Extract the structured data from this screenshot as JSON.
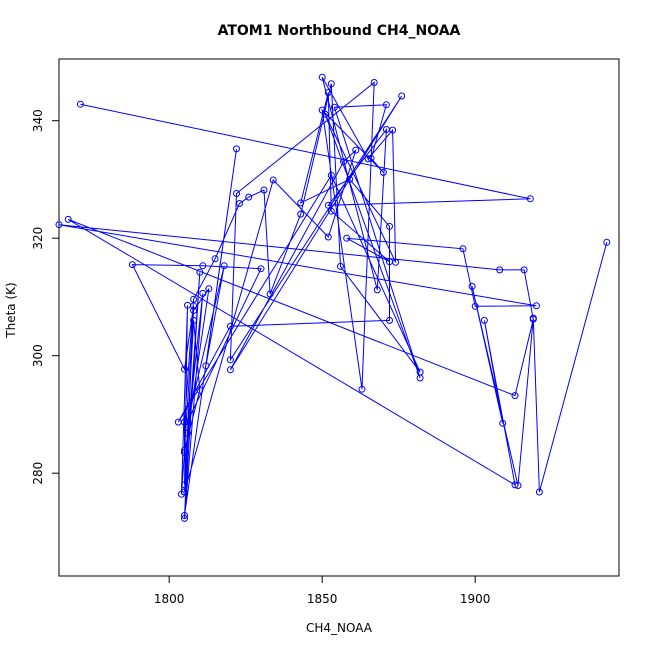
{
  "chart_data": {
    "type": "line",
    "title": "ATOM1 Northbound CH4_NOAA",
    "xlabel": "CH4_NOAA",
    "ylabel": "Theta (K)",
    "xlim": [
      1764,
      1947
    ],
    "ylim": [
      262.5,
      350.5
    ],
    "x_ticks": [
      1800,
      1850,
      1900
    ],
    "y_ticks": [
      280,
      300,
      320,
      340
    ],
    "grid": false,
    "legend": "none",
    "marker": "open-circle",
    "colors": {
      "series": "#0000ff",
      "axes": "#000000",
      "background": "#ffffff"
    },
    "series": [
      {
        "points": [
          [
            1771,
            342.8
          ],
          [
            1918,
            326.7
          ],
          [
            1852,
            325.6
          ],
          [
            1871,
            338.5
          ],
          [
            1868,
            311.2
          ],
          [
            1850,
            347.4
          ],
          [
            1865,
            333.5
          ],
          [
            1873,
            338.4
          ],
          [
            1874,
            315.9
          ],
          [
            1851,
            341.1
          ],
          [
            1882,
            296.2
          ],
          [
            1854,
            342.3
          ],
          [
            1871,
            342.7
          ],
          [
            1866,
            333.6
          ],
          [
            1870,
            331.2
          ],
          [
            1850,
            341.8
          ],
          [
            1863,
            294.3
          ],
          [
            1867,
            346.5
          ],
          [
            1822,
            327.6
          ],
          [
            1820,
            299.3
          ],
          [
            1876,
            344.2
          ],
          [
            1820,
            297.6
          ],
          [
            1857,
            333.0
          ],
          [
            1861,
            335.0
          ],
          [
            1852,
            320.2
          ],
          [
            1834,
            329.9
          ],
          [
            1805,
            276.8
          ],
          [
            1810,
            314.2
          ],
          [
            1805,
            272.8
          ],
          [
            1822,
            335.2
          ],
          [
            1812,
            298.3
          ],
          [
            1818,
            315.3
          ],
          [
            1806,
            288.8
          ],
          [
            1830,
            314.8
          ],
          [
            1811,
            315.3
          ],
          [
            1788,
            315.5
          ],
          [
            1805,
            297.7
          ],
          [
            1808,
            308.5
          ],
          [
            1805,
            272.3
          ],
          [
            1811,
            310.6
          ],
          [
            1806,
            286.8
          ],
          [
            1813,
            311.4
          ],
          [
            1808,
            307.7
          ],
          [
            1805,
            283.9
          ],
          [
            1810,
            294.1
          ],
          [
            1808,
            306.0
          ],
          [
            1805,
            278.0
          ],
          [
            1806,
            308.6
          ],
          [
            1804,
            276.4
          ],
          [
            1805,
            283.5
          ],
          [
            1805,
            288.7
          ],
          [
            1808,
            309.6
          ],
          [
            1815,
            316.5
          ],
          [
            1823,
            325.9
          ],
          [
            1826,
            327.0
          ],
          [
            1831,
            328.2
          ],
          [
            1833,
            310.5
          ],
          [
            1843,
            324.1
          ],
          [
            1853,
            346.3
          ],
          [
            1856,
            315.2
          ],
          [
            1882,
            297.2
          ],
          [
            1853,
            330.7
          ],
          [
            1803,
            288.7
          ],
          [
            1820,
            305.0
          ],
          [
            1872,
            306.0
          ],
          [
            1872,
            322.0
          ],
          [
            1859,
            330.0
          ],
          [
            1843,
            326.0
          ],
          [
            1852,
            344.8
          ],
          [
            1853,
            324.6
          ],
          [
            1872,
            316.0
          ],
          [
            1858,
            320.0
          ],
          [
            1896,
            318.2
          ],
          [
            1900,
            308.4
          ],
          [
            1920,
            308.5
          ],
          [
            1764,
            322.3
          ],
          [
            1908,
            314.6
          ],
          [
            1916,
            314.6
          ],
          [
            1919,
            306.2
          ],
          [
            1913,
            293.2
          ],
          [
            1767,
            323.2
          ],
          [
            1913,
            278.0
          ],
          [
            1903,
            306.0
          ],
          [
            1909,
            288.5
          ],
          [
            1899,
            311.8
          ],
          [
            1914,
            277.9
          ],
          [
            1919,
            306.4
          ],
          [
            1921,
            276.8
          ],
          [
            1943,
            319.3
          ]
        ]
      }
    ]
  }
}
